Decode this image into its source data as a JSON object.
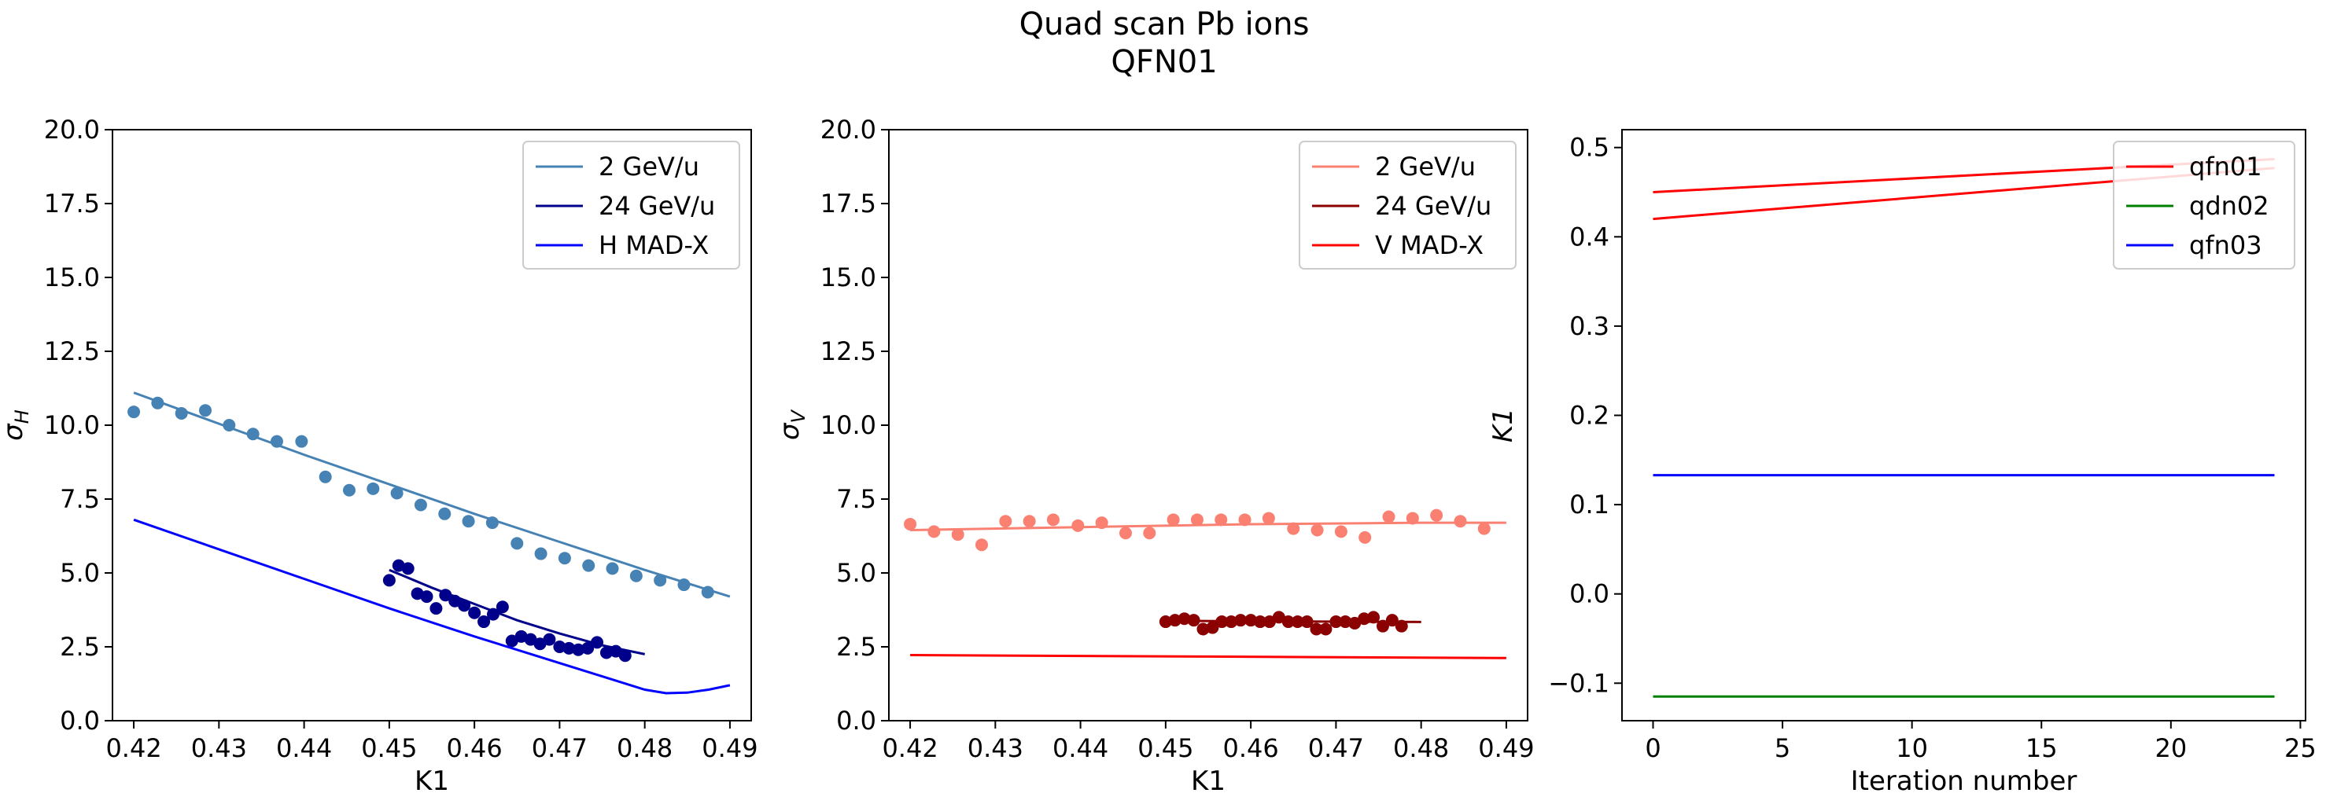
{
  "figure": {
    "title_line1": "Quad scan Pb ions",
    "title_line2": "QFN01"
  },
  "chart_data": [
    {
      "type": "scatter",
      "panel": "horizontal",
      "xlabel": "K1",
      "ylabel": "σ",
      "ylabel_sub": "H",
      "xlim": [
        0.4175,
        0.4925
      ],
      "ylim": [
        0,
        20
      ],
      "xticks": [
        "0.42",
        "0.43",
        "0.44",
        "0.45",
        "0.46",
        "0.47",
        "0.48",
        "0.49"
      ],
      "yticks": [
        "0.0",
        "2.5",
        "5.0",
        "7.5",
        "10.0",
        "12.5",
        "15.0",
        "17.5",
        "20.0"
      ],
      "grid": false,
      "legend_position": "top-right",
      "series": [
        {
          "name": "2 GeV/u",
          "color": "#4682b4",
          "points": [
            [
              0.42,
              10.45
            ],
            [
              0.4228,
              10.75
            ],
            [
              0.4256,
              10.4
            ],
            [
              0.4284,
              10.5
            ],
            [
              0.4312,
              10.0
            ],
            [
              0.434,
              9.7
            ],
            [
              0.4368,
              9.45
            ],
            [
              0.4397,
              9.45
            ],
            [
              0.4425,
              8.25
            ],
            [
              0.4453,
              7.8
            ],
            [
              0.4481,
              7.85
            ],
            [
              0.4509,
              7.7
            ],
            [
              0.4537,
              7.3
            ],
            [
              0.4565,
              7.0
            ],
            [
              0.4593,
              6.75
            ],
            [
              0.4621,
              6.7
            ],
            [
              0.465,
              6.0
            ],
            [
              0.4678,
              5.65
            ],
            [
              0.4706,
              5.5
            ],
            [
              0.4734,
              5.25
            ],
            [
              0.4762,
              5.15
            ],
            [
              0.479,
              4.9
            ],
            [
              0.4818,
              4.75
            ],
            [
              0.4846,
              4.6
            ],
            [
              0.4874,
              4.35
            ]
          ],
          "fit": [
            [
              0.42,
              11.1
            ],
            [
              0.43,
              10.05
            ],
            [
              0.44,
              9.0
            ],
            [
              0.45,
              8.0
            ],
            [
              0.46,
              7.0
            ],
            [
              0.47,
              6.05
            ],
            [
              0.48,
              5.1
            ],
            [
              0.49,
              4.2
            ]
          ]
        },
        {
          "name": "24 GeV/u",
          "color": "#00008b",
          "points": [
            [
              0.45,
              4.75
            ],
            [
              0.4511,
              5.25
            ],
            [
              0.4522,
              5.15
            ],
            [
              0.4533,
              4.3
            ],
            [
              0.4544,
              4.2
            ],
            [
              0.4555,
              3.8
            ],
            [
              0.4566,
              4.25
            ],
            [
              0.4577,
              4.05
            ],
            [
              0.4588,
              3.9
            ],
            [
              0.46,
              3.65
            ],
            [
              0.4611,
              3.35
            ],
            [
              0.4622,
              3.6
            ],
            [
              0.4633,
              3.85
            ],
            [
              0.4644,
              2.7
            ],
            [
              0.4655,
              2.85
            ],
            [
              0.4666,
              2.75
            ],
            [
              0.4677,
              2.6
            ],
            [
              0.4688,
              2.75
            ],
            [
              0.47,
              2.5
            ],
            [
              0.4711,
              2.45
            ],
            [
              0.4722,
              2.4
            ],
            [
              0.4733,
              2.45
            ],
            [
              0.4744,
              2.65
            ],
            [
              0.4755,
              2.3
            ],
            [
              0.4766,
              2.35
            ],
            [
              0.4777,
              2.2
            ]
          ],
          "fit": [
            [
              0.45,
              5.1
            ],
            [
              0.455,
              4.5
            ],
            [
              0.46,
              3.95
            ],
            [
              0.465,
              3.4
            ],
            [
              0.47,
              2.95
            ],
            [
              0.475,
              2.55
            ],
            [
              0.48,
              2.25
            ]
          ]
        },
        {
          "name": "H MAD-X",
          "color": "#0000ff",
          "line": [
            [
              0.42,
              6.8
            ],
            [
              0.43,
              5.8
            ],
            [
              0.44,
              4.8
            ],
            [
              0.45,
              3.8
            ],
            [
              0.46,
              2.85
            ],
            [
              0.47,
              1.95
            ],
            [
              0.475,
              1.5
            ],
            [
              0.48,
              1.05
            ],
            [
              0.4825,
              0.93
            ],
            [
              0.485,
              0.95
            ],
            [
              0.4875,
              1.05
            ],
            [
              0.49,
              1.2
            ]
          ]
        }
      ]
    },
    {
      "type": "scatter",
      "panel": "vertical",
      "xlabel": "K1",
      "ylabel": "σ",
      "ylabel_sub": "V",
      "xlim": [
        0.4175,
        0.4925
      ],
      "ylim": [
        0,
        20
      ],
      "xticks": [
        "0.42",
        "0.43",
        "0.44",
        "0.45",
        "0.46",
        "0.47",
        "0.48",
        "0.49"
      ],
      "yticks": [
        "0.0",
        "2.5",
        "5.0",
        "7.5",
        "10.0",
        "12.5",
        "15.0",
        "17.5",
        "20.0"
      ],
      "grid": false,
      "legend_position": "top-right",
      "series": [
        {
          "name": "2 GeV/u",
          "color": "#fa8072",
          "points": [
            [
              0.42,
              6.65
            ],
            [
              0.4228,
              6.4
            ],
            [
              0.4256,
              6.3
            ],
            [
              0.4284,
              5.95
            ],
            [
              0.4312,
              6.75
            ],
            [
              0.434,
              6.75
            ],
            [
              0.4368,
              6.8
            ],
            [
              0.4397,
              6.6
            ],
            [
              0.4425,
              6.7
            ],
            [
              0.4453,
              6.35
            ],
            [
              0.4481,
              6.35
            ],
            [
              0.4509,
              6.8
            ],
            [
              0.4537,
              6.8
            ],
            [
              0.4565,
              6.8
            ],
            [
              0.4593,
              6.8
            ],
            [
              0.4621,
              6.85
            ],
            [
              0.465,
              6.5
            ],
            [
              0.4678,
              6.45
            ],
            [
              0.4706,
              6.4
            ],
            [
              0.4734,
              6.2
            ],
            [
              0.4762,
              6.9
            ],
            [
              0.479,
              6.85
            ],
            [
              0.4818,
              6.95
            ],
            [
              0.4846,
              6.75
            ],
            [
              0.4874,
              6.5
            ]
          ],
          "fit": [
            [
              0.42,
              6.45
            ],
            [
              0.44,
              6.55
            ],
            [
              0.46,
              6.65
            ],
            [
              0.48,
              6.7
            ],
            [
              0.49,
              6.7
            ]
          ]
        },
        {
          "name": "24 GeV/u",
          "color": "#8b0000",
          "points": [
            [
              0.45,
              3.35
            ],
            [
              0.4511,
              3.4
            ],
            [
              0.4522,
              3.45
            ],
            [
              0.4533,
              3.4
            ],
            [
              0.4544,
              3.1
            ],
            [
              0.4555,
              3.15
            ],
            [
              0.4566,
              3.35
            ],
            [
              0.4577,
              3.35
            ],
            [
              0.4588,
              3.4
            ],
            [
              0.46,
              3.4
            ],
            [
              0.4611,
              3.35
            ],
            [
              0.4622,
              3.35
            ],
            [
              0.4633,
              3.5
            ],
            [
              0.4644,
              3.35
            ],
            [
              0.4655,
              3.35
            ],
            [
              0.4666,
              3.35
            ],
            [
              0.4677,
              3.1
            ],
            [
              0.4688,
              3.1
            ],
            [
              0.47,
              3.35
            ],
            [
              0.4711,
              3.35
            ],
            [
              0.4722,
              3.3
            ],
            [
              0.4733,
              3.45
            ],
            [
              0.4744,
              3.5
            ],
            [
              0.4755,
              3.2
            ],
            [
              0.4766,
              3.4
            ],
            [
              0.4777,
              3.2
            ]
          ],
          "fit": [
            [
              0.45,
              3.38
            ],
            [
              0.465,
              3.36
            ],
            [
              0.48,
              3.34
            ]
          ]
        },
        {
          "name": "V MAD-X",
          "color": "#ff0000",
          "line": [
            [
              0.42,
              2.22
            ],
            [
              0.455,
              2.17
            ],
            [
              0.49,
              2.12
            ]
          ]
        }
      ]
    },
    {
      "type": "line",
      "panel": "iterations",
      "xlabel": "Iteration number",
      "ylabel": "K1",
      "xlim": [
        -1.2,
        25.2
      ],
      "ylim": [
        -0.142,
        0.52
      ],
      "xticks": [
        "0",
        "5",
        "10",
        "15",
        "20",
        "25"
      ],
      "yticks": [
        "−0.1",
        "0.0",
        "0.1",
        "0.2",
        "0.3",
        "0.4",
        "0.5"
      ],
      "grid": false,
      "legend_position": "top-right",
      "series": [
        {
          "name": "qfn01",
          "color": "#ff0000",
          "segments": [
            [
              [
                0,
                0.45
              ],
              [
                24,
                0.487
              ]
            ],
            [
              [
                0,
                0.42
              ],
              [
                24,
                0.477
              ]
            ]
          ]
        },
        {
          "name": "qdn02",
          "color": "#008000",
          "segments": [
            [
              [
                0,
                -0.115
              ],
              [
                24,
                -0.115
              ]
            ]
          ]
        },
        {
          "name": "qfn03",
          "color": "#0000ff",
          "segments": [
            [
              [
                0,
                0.133
              ],
              [
                24,
                0.133
              ]
            ]
          ]
        }
      ]
    }
  ]
}
